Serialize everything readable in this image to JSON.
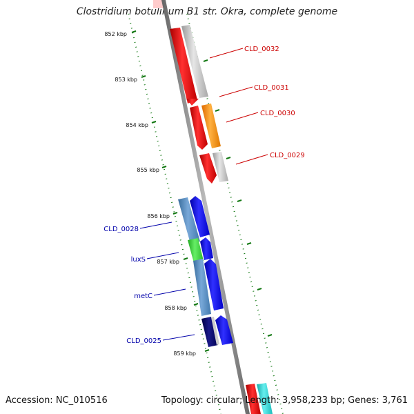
{
  "title": "Clostridium botulinum B1 str. Okra, complete genome",
  "footer": {
    "accession": "Accession: NC_010516",
    "summary": "Topology: circular; Length: 3,958,233 bp; Genes: 3,761"
  },
  "scale_labels": [
    "852 kbp",
    "853 kbp",
    "854 kbp",
    "855 kbp",
    "856 kbp",
    "857 kbp",
    "858 kbp",
    "859 kbp"
  ],
  "gene_labels": [
    {
      "text": "CLD_0032",
      "color": "#cc0000"
    },
    {
      "text": "CLD_0031",
      "color": "#cc0000"
    },
    {
      "text": "CLD_0030",
      "color": "#cc0000"
    },
    {
      "text": "CLD_0029",
      "color": "#cc0000"
    },
    {
      "text": "CLD_0028",
      "color": "#0000aa"
    },
    {
      "text": "luxS",
      "color": "#0000aa"
    },
    {
      "text": "metC",
      "color": "#0000aa"
    },
    {
      "text": "CLD_0025",
      "color": "#0000aa"
    }
  ],
  "colors": {
    "red_gene": "#ff0000",
    "red_feature": "#ff0000",
    "grey_feature": "#bbbbbb",
    "orange_feature": "#ff8800",
    "blue_gene": "#0000ee",
    "steelblue_feature": "#4f84b8",
    "green_feature": "#33cc33",
    "navy_feature": "#000066",
    "cyan_feature": "#22cccc",
    "backbone": "#888888",
    "tick_green": "#117711"
  }
}
